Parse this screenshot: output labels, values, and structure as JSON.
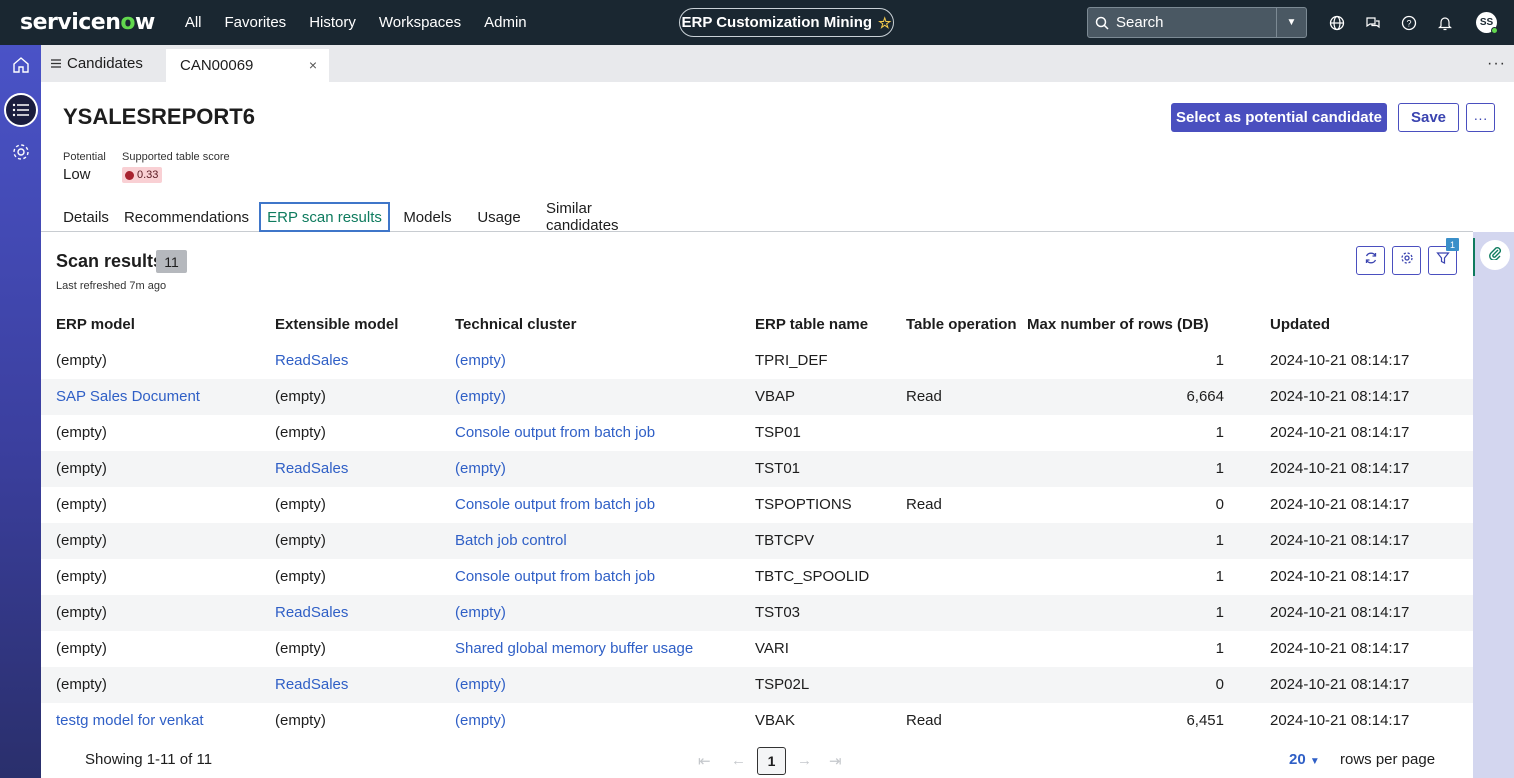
{
  "topnav": {
    "logo_prefix": "servicen",
    "logo_dot": "o",
    "logo_suffix": "w",
    "links": [
      "All",
      "Favorites",
      "History",
      "Workspaces",
      "Admin"
    ],
    "context_pill": "ERP Customization Mining",
    "search_placeholder": "Search",
    "avatar_initials": "SS"
  },
  "tabstrip": {
    "list_tab_label": "Candidates",
    "record_tab_label": "CAN00069"
  },
  "record": {
    "title": "YSALESREPORT6",
    "primary_action": "Select as potential candidate",
    "save_label": "Save",
    "potential_label": "Potential",
    "potential_value": "Low",
    "score_label": "Supported table score",
    "score_value": "0.33"
  },
  "record_tabs": [
    "Details",
    "Recommendations",
    "ERP scan results",
    "Models",
    "Usage",
    "Similar candidates"
  ],
  "active_tab": "ERP scan results",
  "scan_results": {
    "title": "Scan results",
    "count": "11",
    "last_refreshed": "Last refreshed 7m ago",
    "filter_count": "1",
    "columns": [
      "ERP model",
      "Extensible model",
      "Technical cluster",
      "ERP table name",
      "Table operation",
      "Max number of rows (DB)",
      "Updated"
    ],
    "rows": [
      {
        "erp_model": "(empty)",
        "extensible_model": "ReadSales",
        "technical_cluster": "(empty)",
        "table_name": "TPRI_DEF",
        "operation": "",
        "max_rows": "1",
        "updated": "2024-10-21 08:14:17"
      },
      {
        "erp_model": "SAP Sales Document",
        "extensible_model": "(empty)",
        "technical_cluster": "(empty)",
        "table_name": "VBAP",
        "operation": "Read",
        "max_rows": "6,664",
        "updated": "2024-10-21 08:14:17"
      },
      {
        "erp_model": "(empty)",
        "extensible_model": "(empty)",
        "technical_cluster": "Console output from batch job",
        "table_name": "TSP01",
        "operation": "",
        "max_rows": "1",
        "updated": "2024-10-21 08:14:17"
      },
      {
        "erp_model": "(empty)",
        "extensible_model": "ReadSales",
        "technical_cluster": "(empty)",
        "table_name": "TST01",
        "operation": "",
        "max_rows": "1",
        "updated": "2024-10-21 08:14:17"
      },
      {
        "erp_model": "(empty)",
        "extensible_model": "(empty)",
        "technical_cluster": "Console output from batch job",
        "table_name": "TSPOPTIONS",
        "operation": "Read",
        "max_rows": "0",
        "updated": "2024-10-21 08:14:17"
      },
      {
        "erp_model": "(empty)",
        "extensible_model": "(empty)",
        "technical_cluster": "Batch job control",
        "table_name": "TBTCPV",
        "operation": "",
        "max_rows": "1",
        "updated": "2024-10-21 08:14:17"
      },
      {
        "erp_model": "(empty)",
        "extensible_model": "(empty)",
        "technical_cluster": "Console output from batch job",
        "table_name": "TBTC_SPOOLID",
        "operation": "",
        "max_rows": "1",
        "updated": "2024-10-21 08:14:17"
      },
      {
        "erp_model": "(empty)",
        "extensible_model": "ReadSales",
        "technical_cluster": "(empty)",
        "table_name": "TST03",
        "operation": "",
        "max_rows": "1",
        "updated": "2024-10-21 08:14:17"
      },
      {
        "erp_model": "(empty)",
        "extensible_model": "(empty)",
        "technical_cluster": "Shared global memory buffer usage",
        "table_name": "VARI",
        "operation": "",
        "max_rows": "1",
        "updated": "2024-10-21 08:14:17"
      },
      {
        "erp_model": "(empty)",
        "extensible_model": "ReadSales",
        "technical_cluster": "(empty)",
        "table_name": "TSP02L",
        "operation": "",
        "max_rows": "0",
        "updated": "2024-10-21 08:14:17"
      },
      {
        "erp_model": "testg model for venkat",
        "extensible_model": "(empty)",
        "technical_cluster": "(empty)",
        "table_name": "VBAK",
        "operation": "Read",
        "max_rows": "6,451",
        "updated": "2024-10-21 08:14:17"
      }
    ]
  },
  "pagination": {
    "showing": "Showing 1-11 of 11",
    "current_page": "1",
    "rows_per_page": "20",
    "rows_per_page_label": "rows per page"
  },
  "colors": {
    "topnav_bg": "#1a2731",
    "primary": "#4a4fbf",
    "link": "#2f5fc6",
    "active_tab_text": "#0e7b5e",
    "score_dot": "#a8222f"
  }
}
